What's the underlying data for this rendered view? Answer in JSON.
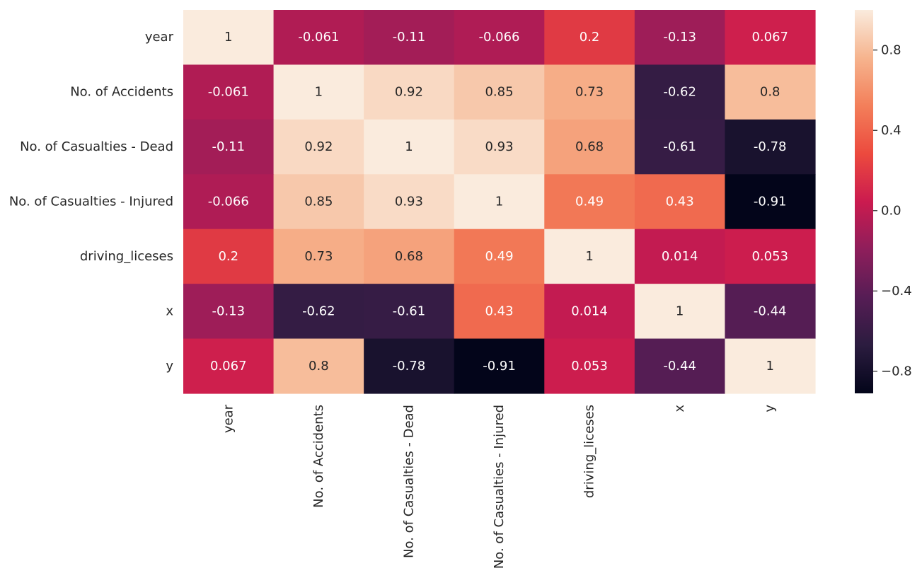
{
  "chart_data": {
    "type": "heatmap",
    "title": "",
    "xlabel": "",
    "ylabel": "",
    "colormap": "rocket",
    "row_labels": [
      "year",
      "No. of Accidents",
      "No. of Casualties - Dead",
      "No. of Casualties - Injured",
      "driving_liceses",
      "x",
      "y"
    ],
    "col_labels": [
      "year",
      "No. of Accidents",
      "No. of Casualties - Dead",
      "No. of Casualties - Injured",
      "driving_liceses",
      "x",
      "y"
    ],
    "values": [
      [
        1,
        -0.061,
        -0.11,
        -0.066,
        0.2,
        -0.13,
        0.067
      ],
      [
        -0.061,
        1,
        0.92,
        0.85,
        0.73,
        -0.62,
        0.8
      ],
      [
        -0.11,
        0.92,
        1,
        0.93,
        0.68,
        -0.61,
        -0.78
      ],
      [
        -0.066,
        0.85,
        0.93,
        1,
        0.49,
        0.43,
        -0.91
      ],
      [
        0.2,
        0.73,
        0.68,
        0.49,
        1,
        0.014,
        0.053
      ],
      [
        -0.13,
        -0.62,
        -0.61,
        0.43,
        0.014,
        1,
        -0.44
      ],
      [
        0.067,
        0.8,
        -0.78,
        -0.91,
        0.053,
        -0.44,
        1
      ]
    ],
    "annotations": [
      [
        "1",
        "-0.061",
        "-0.11",
        "-0.066",
        "0.2",
        "-0.13",
        "0.067"
      ],
      [
        "-0.061",
        "1",
        "0.92",
        "0.85",
        "0.73",
        "-0.62",
        "0.8"
      ],
      [
        "-0.11",
        "0.92",
        "1",
        "0.93",
        "0.68",
        "-0.61",
        "-0.78"
      ],
      [
        "-0.066",
        "0.85",
        "0.93",
        "1",
        "0.49",
        "0.43",
        "-0.91"
      ],
      [
        "0.2",
        "0.73",
        "0.68",
        "0.49",
        "1",
        "0.014",
        "0.053"
      ],
      [
        "-0.13",
        "-0.62",
        "-0.61",
        "0.43",
        "0.014",
        "1",
        "-0.44"
      ],
      [
        "0.067",
        "0.8",
        "-0.78",
        "-0.91",
        "0.053",
        "-0.44",
        "1"
      ]
    ],
    "vmin": -0.91,
    "vmax": 1,
    "colorbar": {
      "ticks": [
        0.8,
        0.4,
        0.0,
        -0.4,
        -0.8
      ],
      "tick_labels": [
        "0.8",
        "0.4",
        "0.0",
        "−0.4",
        "−0.8"
      ]
    }
  }
}
